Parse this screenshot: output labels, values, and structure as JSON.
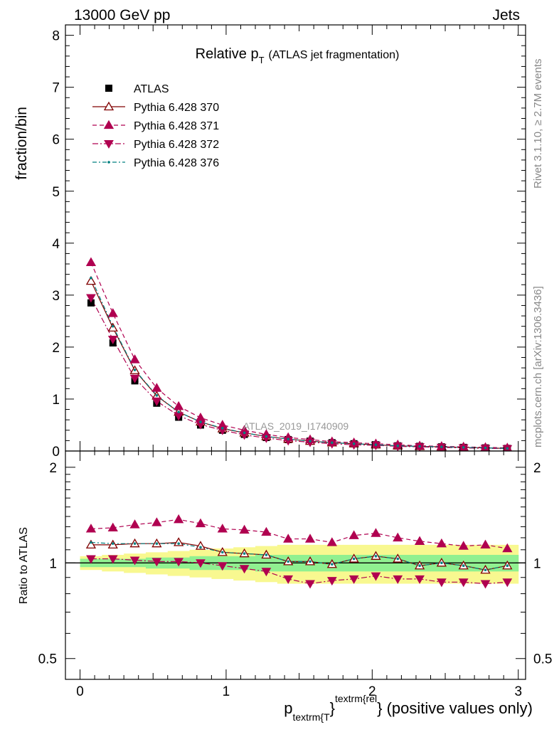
{
  "header": {
    "left": "13000 GeV pp",
    "right": "Jets"
  },
  "side_labels": {
    "rivet": "Rivet 3.1.10, ≥ 2.7M events",
    "mcplots": "mcplots.cern.ch [arXiv:1306.3436]"
  },
  "colors": {
    "atlas": "#000000",
    "py370": "#800000",
    "py371": "#b00050",
    "py372": "#b00050",
    "py376": "#008080",
    "band_inner": "#90f090",
    "band_outer": "#f8f890"
  },
  "chart_data": [
    {
      "type": "line",
      "title": {
        "main": "Relative p",
        "sub": "T",
        "suffix": "(ATLAS jet fragmentation)"
      },
      "ylabel": "fraction/bin",
      "watermark": "ATLAS_2019_I1740909",
      "xlim": [
        -0.1,
        3.05
      ],
      "ylim": [
        0,
        8.2
      ],
      "yticks": [
        0,
        1,
        2,
        3,
        4,
        5,
        6,
        7,
        8
      ],
      "x": [
        0.075,
        0.225,
        0.375,
        0.525,
        0.675,
        0.825,
        0.975,
        1.125,
        1.275,
        1.425,
        1.575,
        1.725,
        1.875,
        2.025,
        2.175,
        2.325,
        2.475,
        2.625,
        2.775,
        2.925
      ],
      "legend_position": "top-left",
      "series": [
        {
          "name": "ATLAS",
          "key": "atlas",
          "marker": "square",
          "values": [
            2.85,
            2.08,
            1.35,
            0.92,
            0.65,
            0.5,
            0.4,
            0.32,
            0.26,
            0.22,
            0.19,
            0.16,
            0.14,
            0.12,
            0.1,
            0.09,
            0.08,
            0.07,
            0.06,
            0.05
          ]
        },
        {
          "name": "Pythia 6.428 370",
          "key": "py370",
          "marker": "triangle-up-open",
          "dash": "",
          "values": [
            3.27,
            2.37,
            1.55,
            1.06,
            0.75,
            0.56,
            0.43,
            0.35,
            0.28,
            0.23,
            0.19,
            0.16,
            0.14,
            0.12,
            0.1,
            0.09,
            0.08,
            0.07,
            0.06,
            0.05
          ]
        },
        {
          "name": "Pythia 6.428 371",
          "key": "py371",
          "marker": "triangle-up",
          "dash": "6,4",
          "values": [
            3.63,
            2.65,
            1.76,
            1.21,
            0.86,
            0.64,
            0.5,
            0.4,
            0.32,
            0.26,
            0.22,
            0.18,
            0.16,
            0.14,
            0.12,
            0.1,
            0.09,
            0.08,
            0.07,
            0.06
          ]
        },
        {
          "name": "Pythia 6.428 372",
          "key": "py372",
          "marker": "triangle-down",
          "dash": "8,3,2,3",
          "values": [
            2.95,
            2.15,
            1.4,
            0.96,
            0.68,
            0.51,
            0.4,
            0.31,
            0.25,
            0.2,
            0.17,
            0.14,
            0.12,
            0.11,
            0.09,
            0.08,
            0.07,
            0.06,
            0.05,
            0.045
          ]
        },
        {
          "name": "Pythia 6.428 376",
          "key": "py376",
          "marker": "dot",
          "dash": "6,3,2,3",
          "values": [
            3.33,
            2.4,
            1.56,
            1.07,
            0.75,
            0.56,
            0.44,
            0.35,
            0.28,
            0.23,
            0.19,
            0.16,
            0.14,
            0.12,
            0.1,
            0.09,
            0.08,
            0.07,
            0.06,
            0.05
          ]
        }
      ]
    },
    {
      "type": "line",
      "ylabel": "Ratio to ATLAS",
      "xlabel": {
        "p": "p",
        "sub": "textrm{T",
        "sup": "textrm{rel",
        "suffix": "} (positive values only)"
      },
      "xlim": [
        -0.1,
        3.05
      ],
      "xticks": [
        0,
        1,
        2,
        3
      ],
      "ylim": [
        0.43,
        2.25
      ],
      "yticks": [
        0.5,
        1,
        2
      ],
      "ytick_labels": [
        "0.5",
        "1",
        "2"
      ],
      "log_y": true,
      "band_inner": {
        "lo": [
          0.97,
          0.97,
          0.97,
          0.96,
          0.96,
          0.95,
          0.95,
          0.95,
          0.94,
          0.94,
          0.94,
          0.94,
          0.94,
          0.94,
          0.94,
          0.94,
          0.94,
          0.94,
          0.94,
          0.94
        ],
        "hi": [
          1.03,
          1.03,
          1.03,
          1.04,
          1.04,
          1.05,
          1.05,
          1.05,
          1.06,
          1.06,
          1.06,
          1.06,
          1.06,
          1.06,
          1.06,
          1.06,
          1.06,
          1.06,
          1.06,
          1.06
        ]
      },
      "band_outer": {
        "lo": [
          0.95,
          0.94,
          0.93,
          0.92,
          0.91,
          0.9,
          0.89,
          0.88,
          0.87,
          0.86,
          0.86,
          0.86,
          0.86,
          0.86,
          0.86,
          0.86,
          0.86,
          0.86,
          0.86,
          0.86
        ],
        "hi": [
          1.05,
          1.06,
          1.07,
          1.08,
          1.09,
          1.1,
          1.11,
          1.12,
          1.13,
          1.14,
          1.14,
          1.14,
          1.14,
          1.14,
          1.14,
          1.14,
          1.14,
          1.14,
          1.14,
          1.14
        ]
      },
      "series": [
        {
          "key": "py370",
          "marker": "triangle-up-open",
          "dash": "",
          "values": [
            1.14,
            1.14,
            1.15,
            1.15,
            1.16,
            1.13,
            1.08,
            1.07,
            1.06,
            1.01,
            1.01,
            0.99,
            1.03,
            1.05,
            1.03,
            0.98,
            1.0,
            0.98,
            0.95,
            0.98
          ]
        },
        {
          "key": "py371",
          "marker": "triangle-up",
          "dash": "6,4",
          "values": [
            1.28,
            1.29,
            1.32,
            1.34,
            1.37,
            1.33,
            1.28,
            1.27,
            1.25,
            1.19,
            1.19,
            1.16,
            1.22,
            1.24,
            1.2,
            1.17,
            1.15,
            1.13,
            1.14,
            1.11
          ]
        },
        {
          "key": "py372",
          "marker": "triangle-down",
          "dash": "8,3,2,3",
          "values": [
            1.03,
            1.03,
            1.02,
            1.01,
            1.01,
            1.0,
            0.98,
            0.96,
            0.94,
            0.89,
            0.86,
            0.88,
            0.89,
            0.91,
            0.89,
            0.89,
            0.87,
            0.87,
            0.86,
            0.87
          ]
        },
        {
          "key": "py376",
          "marker": "dot",
          "dash": "6,3,2,3",
          "values": [
            1.16,
            1.15,
            1.15,
            1.15,
            1.15,
            1.12,
            1.08,
            1.07,
            1.06,
            1.01,
            1.01,
            0.99,
            1.03,
            1.05,
            1.03,
            0.98,
            1.0,
            0.98,
            0.95,
            0.98
          ]
        }
      ]
    }
  ]
}
